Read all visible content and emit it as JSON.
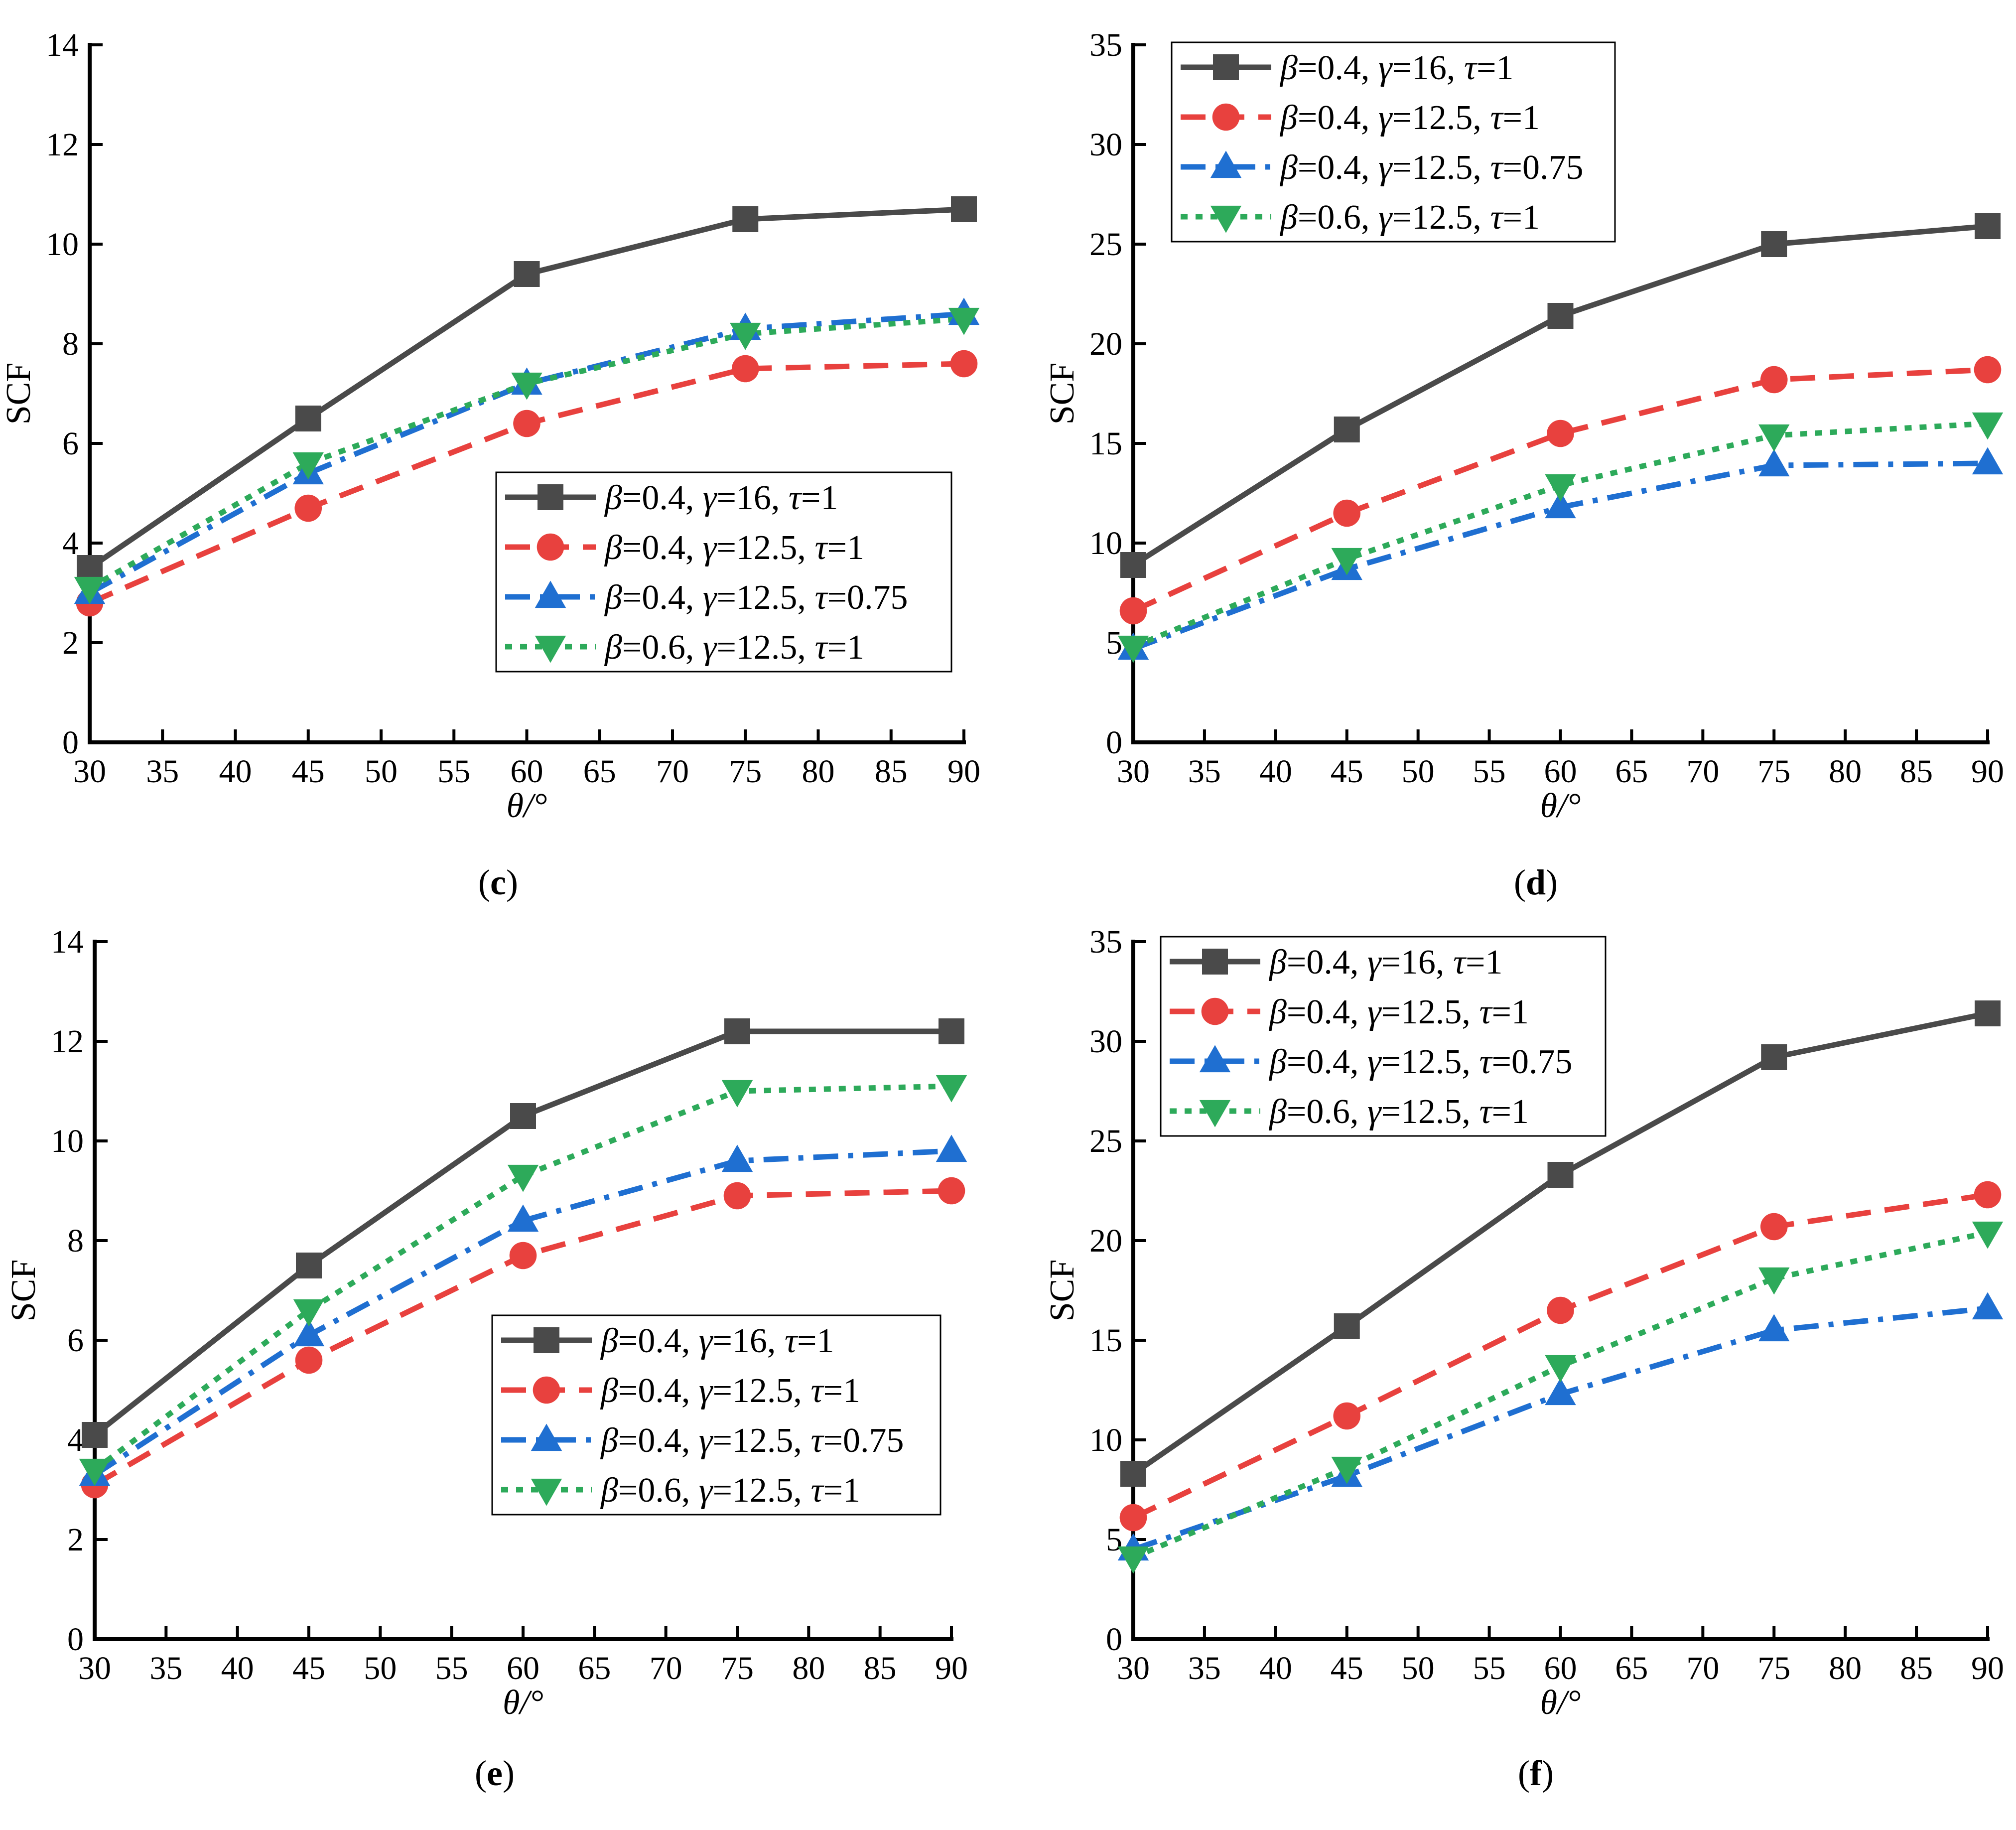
{
  "styles": {
    "series_colors": [
      "#4a4a4a",
      "#e8413e",
      "#1f6fd1",
      "#2daa5a"
    ],
    "series_dash": [
      "",
      "50,28",
      "50,20,10,20",
      "14,16"
    ],
    "series_markers": [
      "square",
      "circle",
      "triangle-up",
      "triangle-down"
    ]
  },
  "chart_data": [
    {
      "type": "line",
      "panel_label": "(c)",
      "bold_letter": "c",
      "xlabel": "θ/°",
      "ylabel": "SCF",
      "xlim": [
        30,
        90
      ],
      "ylim": [
        0,
        14
      ],
      "xticks": [
        30,
        35,
        40,
        45,
        50,
        55,
        60,
        65,
        70,
        75,
        80,
        85,
        90
      ],
      "yticks": [
        0,
        2,
        4,
        6,
        8,
        10,
        12,
        14
      ],
      "x": [
        30,
        45,
        60,
        75,
        90
      ],
      "legend_position": "center-right",
      "series": [
        {
          "name": "β=0.4, γ=16, τ=1",
          "values": [
            3.5,
            6.5,
            9.4,
            10.5,
            10.7
          ]
        },
        {
          "name": "β=0.4, γ=12.5, τ=1",
          "values": [
            2.8,
            4.7,
            6.4,
            7.5,
            7.6
          ]
        },
        {
          "name": "β=0.4, γ=12.5, τ=0.75",
          "values": [
            3.0,
            5.4,
            7.2,
            8.3,
            8.6
          ]
        },
        {
          "name": "β=0.6, γ=12.5, τ=1",
          "values": [
            3.1,
            5.6,
            7.2,
            8.2,
            8.5
          ]
        }
      ]
    },
    {
      "type": "line",
      "panel_label": "(d)",
      "bold_letter": "d",
      "xlabel": "θ/°",
      "ylabel": "SCF",
      "xlim": [
        30,
        90
      ],
      "ylim": [
        0,
        35
      ],
      "xticks": [
        30,
        35,
        40,
        45,
        50,
        55,
        60,
        65,
        70,
        75,
        80,
        85,
        90
      ],
      "yticks": [
        0,
        5,
        10,
        15,
        20,
        25,
        30,
        35
      ],
      "x": [
        30,
        45,
        60,
        75,
        90
      ],
      "legend_position": "top-left",
      "series": [
        {
          "name": "β=0.4, γ=16, τ=1",
          "values": [
            8.9,
            15.7,
            21.4,
            25.0,
            25.9
          ]
        },
        {
          "name": "β=0.4, γ=12.5, τ=1",
          "values": [
            6.6,
            11.5,
            15.5,
            18.2,
            18.7
          ]
        },
        {
          "name": "β=0.4, γ=12.5, τ=0.75",
          "values": [
            4.7,
            8.7,
            11.8,
            13.9,
            14.0
          ]
        },
        {
          "name": "β=0.6, γ=12.5, τ=1",
          "values": [
            4.8,
            9.2,
            12.9,
            15.4,
            16.0
          ]
        }
      ]
    },
    {
      "type": "line",
      "panel_label": "(e)",
      "bold_letter": "e",
      "xlabel": "θ/°",
      "ylabel": "SCF",
      "xlim": [
        30,
        90
      ],
      "ylim": [
        0,
        14
      ],
      "xticks": [
        30,
        35,
        40,
        45,
        50,
        55,
        60,
        65,
        70,
        75,
        80,
        85,
        90
      ],
      "yticks": [
        0,
        2,
        4,
        6,
        8,
        10,
        12,
        14
      ],
      "x": [
        30,
        45,
        60,
        75,
        90
      ],
      "legend_position": "center-right",
      "series": [
        {
          "name": "β=0.4, γ=16, τ=1",
          "values": [
            4.1,
            7.5,
            10.5,
            12.2,
            12.2
          ]
        },
        {
          "name": "β=0.4, γ=12.5, τ=1",
          "values": [
            3.1,
            5.6,
            7.7,
            8.9,
            9.0
          ]
        },
        {
          "name": "β=0.4, γ=12.5, τ=0.75",
          "values": [
            3.3,
            6.1,
            8.4,
            9.6,
            9.8
          ]
        },
        {
          "name": "β=0.6, γ=12.5, τ=1",
          "values": [
            3.4,
            6.6,
            9.3,
            11.0,
            11.1
          ]
        }
      ]
    },
    {
      "type": "line",
      "panel_label": "(f)",
      "bold_letter": "f",
      "xlabel": "θ/°",
      "ylabel": "SCF",
      "xlim": [
        30,
        90
      ],
      "ylim": [
        0,
        35
      ],
      "xticks": [
        30,
        35,
        40,
        45,
        50,
        55,
        60,
        65,
        70,
        75,
        80,
        85,
        90
      ],
      "yticks": [
        0,
        5,
        10,
        15,
        20,
        25,
        30,
        35
      ],
      "x": [
        30,
        45,
        60,
        75,
        90
      ],
      "legend_position": "top-left",
      "series": [
        {
          "name": "β=0.4, γ=16, τ=1",
          "values": [
            8.3,
            15.7,
            23.3,
            29.2,
            31.4
          ]
        },
        {
          "name": "β=0.4, γ=12.5, τ=1",
          "values": [
            6.1,
            11.2,
            16.5,
            20.7,
            22.3
          ]
        },
        {
          "name": "β=0.4, γ=12.5, τ=0.75",
          "values": [
            4.5,
            8.2,
            12.3,
            15.5,
            16.6
          ]
        },
        {
          "name": "β=0.6, γ=12.5, τ=1",
          "values": [
            4.1,
            8.6,
            13.7,
            18.1,
            20.4
          ]
        }
      ]
    }
  ]
}
